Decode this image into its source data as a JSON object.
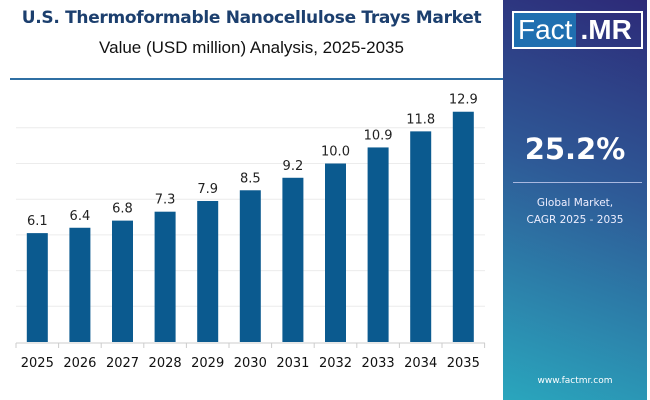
{
  "chart_data": {
    "type": "bar",
    "title": "U.S. Thermoformable Nanocellulose Trays Market",
    "subtitle": "Value (USD million) Analysis, 2025-2035",
    "categories": [
      "2025",
      "2026",
      "2027",
      "2028",
      "2029",
      "2030",
      "2031",
      "2032",
      "2033",
      "2034",
      "2035"
    ],
    "values": [
      6.1,
      6.4,
      6.8,
      7.3,
      7.9,
      8.5,
      9.2,
      10.0,
      10.9,
      11.8,
      12.9
    ],
    "value_labels": [
      "6.1",
      "6.4",
      "6.8",
      "7.3",
      "7.9",
      "8.5",
      "9.2",
      "10.0",
      "10.9",
      "11.8",
      "12.9"
    ],
    "ylim": [
      0,
      13
    ],
    "grid": true,
    "bar_color": "#0b5a8f"
  },
  "panel": {
    "logo_left": "Fact",
    "logo_right": ".MR",
    "cagr_value": "25.2%",
    "cagr_label_line1": "Global Market,",
    "cagr_label_line2": "CAGR 2025 - 2035",
    "website": "www.factmr.com"
  }
}
